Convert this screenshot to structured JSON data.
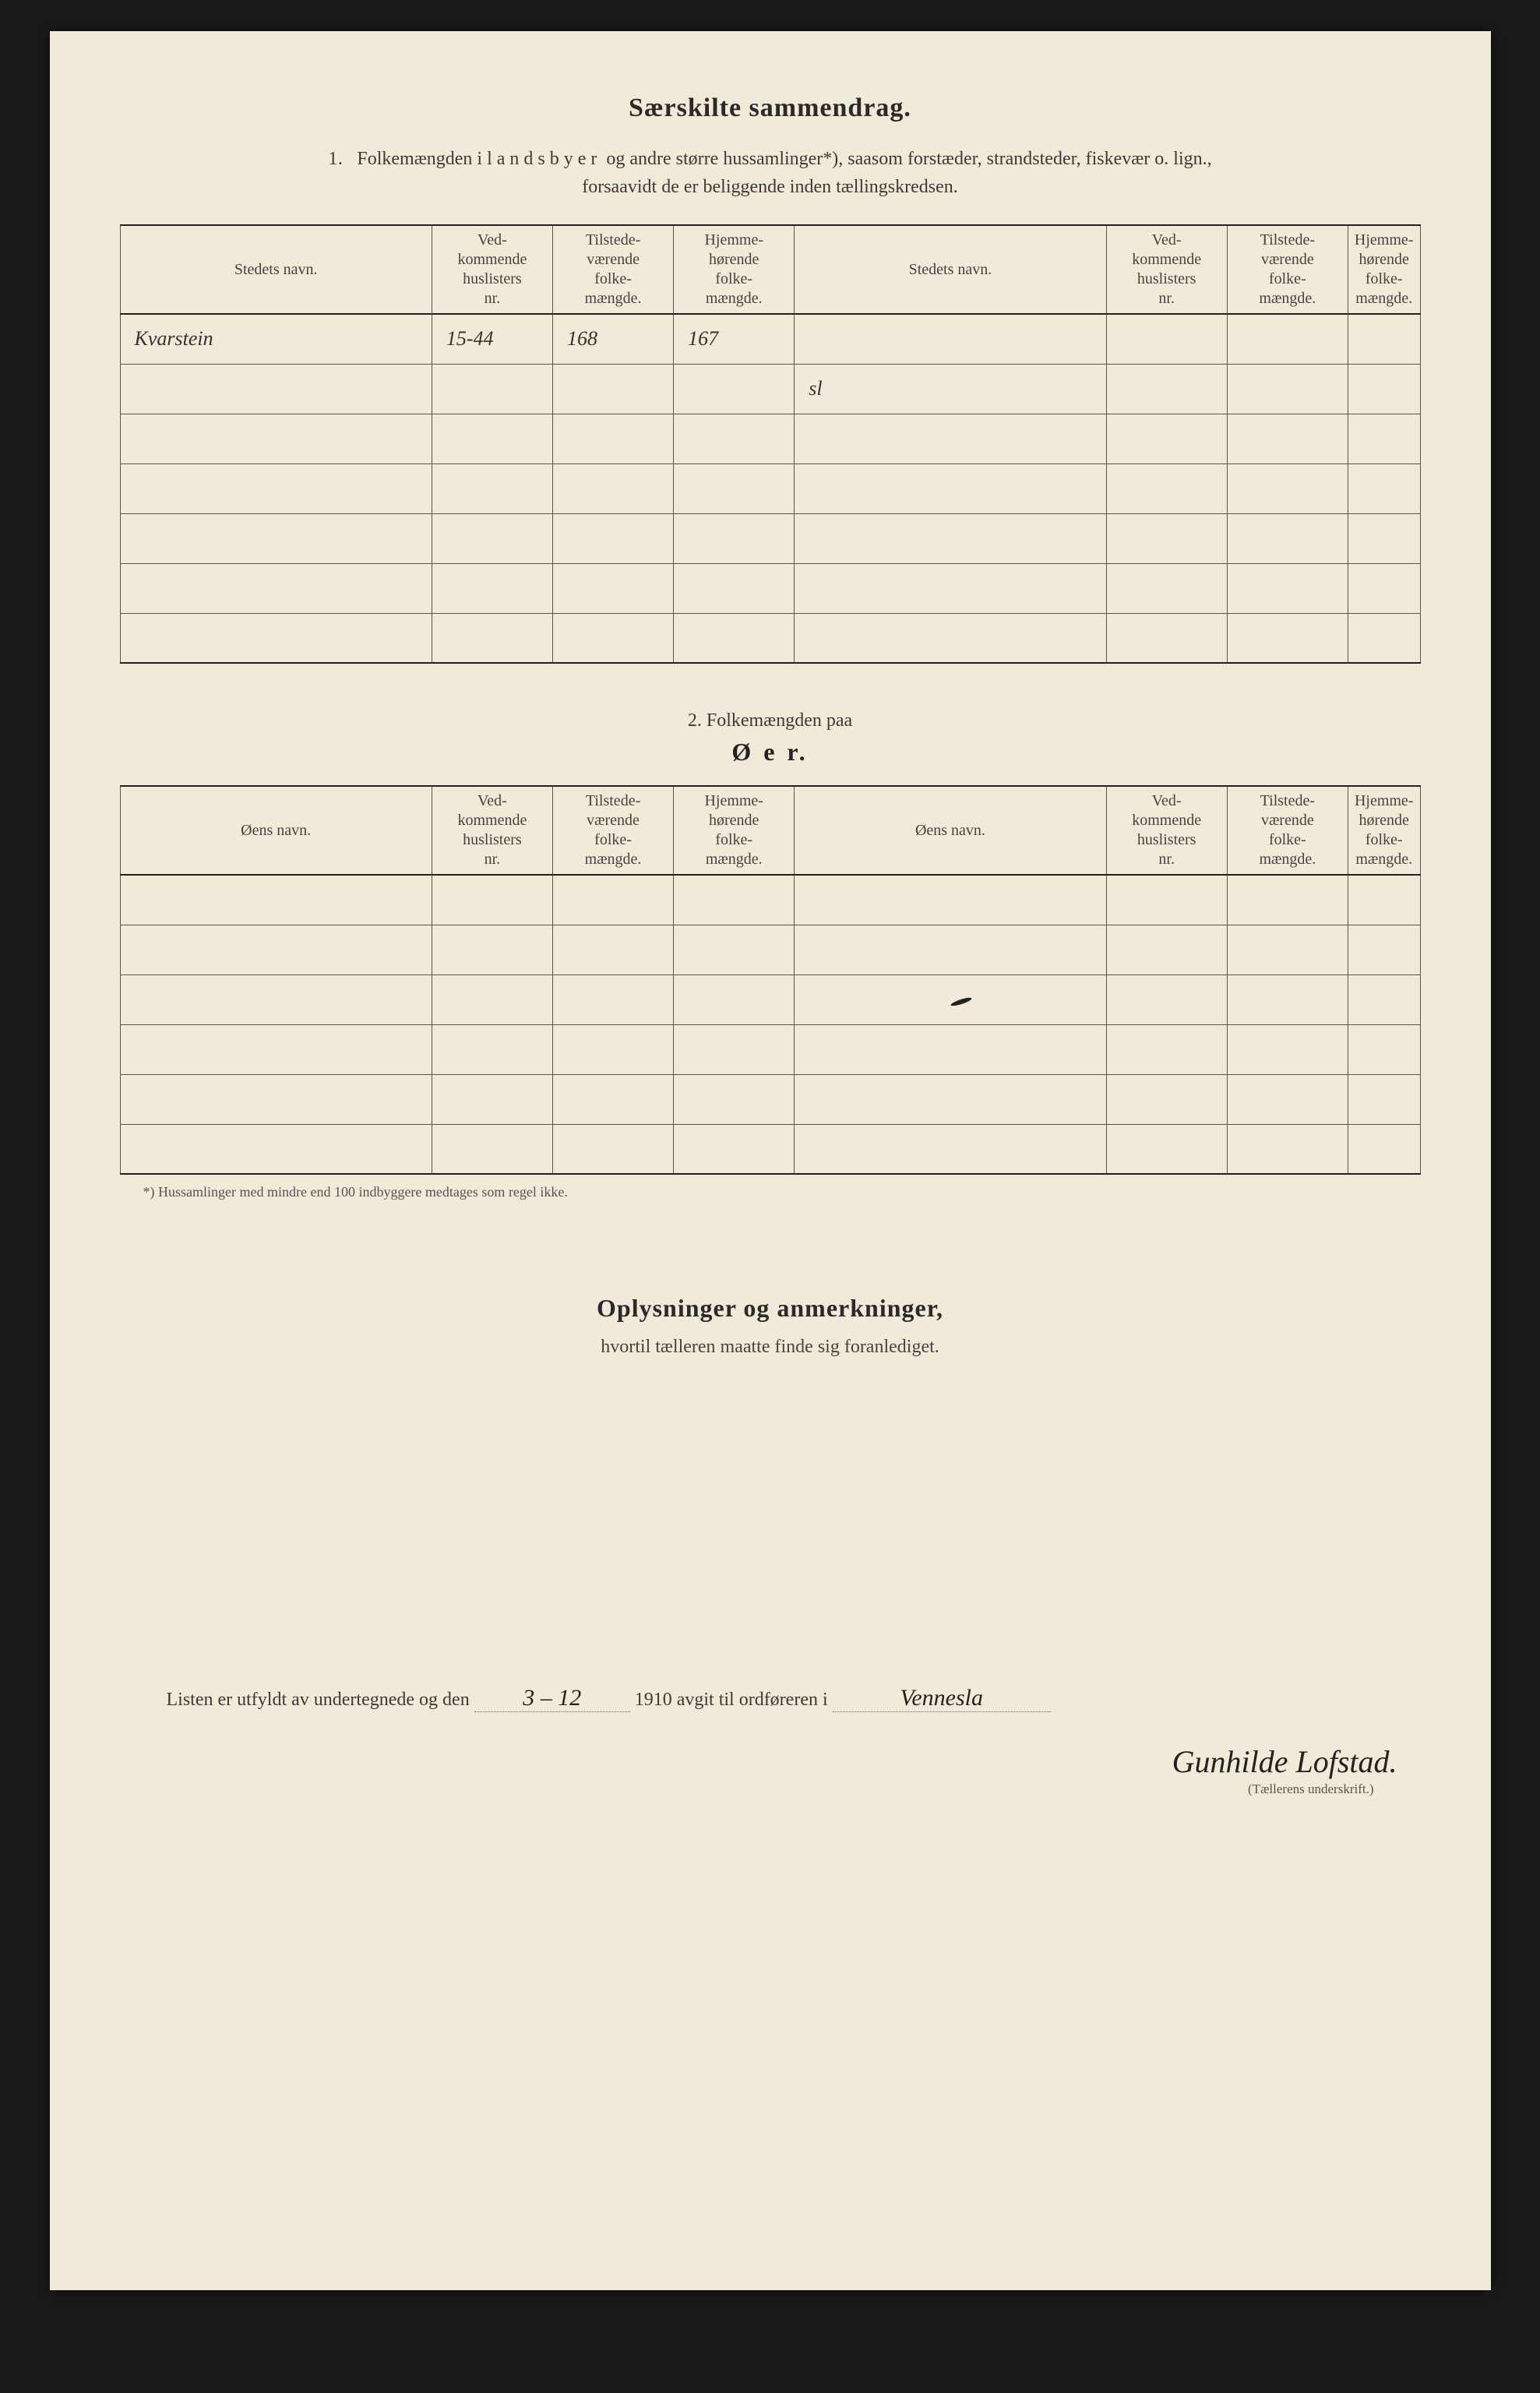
{
  "title": "Særskilte sammendrag.",
  "section1": {
    "number": "1.",
    "text_a": "Folkemængden i ",
    "text_spaced": "landsbyer",
    "text_b": " og andre større hussamlinger*), saasom forstæder, strandsteder, fiskevær o. lign.,",
    "text_c": "forsaavidt de er beliggende inden tællingskredsen."
  },
  "table1": {
    "headers": {
      "name": "Stedets navn.",
      "h1": "Ved-\nkommende\nhuslisters\nnr.",
      "h2": "Tilstede-\nværende\nfolke-\nmængde.",
      "h3": "Hjemme-\nhørende\nfolke-\nmængde."
    },
    "rows_left": [
      {
        "name": "Kvarstein",
        "c1": "15-44",
        "c2": "168",
        "c3": "167"
      },
      {
        "name": "",
        "c1": "",
        "c2": "",
        "c3": ""
      },
      {
        "name": "",
        "c1": "",
        "c2": "",
        "c3": ""
      },
      {
        "name": "",
        "c1": "",
        "c2": "",
        "c3": ""
      },
      {
        "name": "",
        "c1": "",
        "c2": "",
        "c3": ""
      },
      {
        "name": "",
        "c1": "",
        "c2": "",
        "c3": ""
      },
      {
        "name": "",
        "c1": "",
        "c2": "",
        "c3": ""
      }
    ],
    "rows_right": [
      {
        "name": "",
        "c1": "",
        "c2": "",
        "c3": ""
      },
      {
        "name": "sl",
        "c1": "",
        "c2": "",
        "c3": ""
      },
      {
        "name": "",
        "c1": "",
        "c2": "",
        "c3": ""
      },
      {
        "name": "",
        "c1": "",
        "c2": "",
        "c3": ""
      },
      {
        "name": "",
        "c1": "",
        "c2": "",
        "c3": ""
      },
      {
        "name": "",
        "c1": "",
        "c2": "",
        "c3": ""
      },
      {
        "name": "",
        "c1": "",
        "c2": "",
        "c3": ""
      }
    ]
  },
  "section2": {
    "line1": "2.   Folkemængden paa",
    "line2": "Ø e r."
  },
  "table2": {
    "headers": {
      "name": "Øens navn.",
      "h1": "Ved-\nkommende\nhuslisters\nnr.",
      "h2": "Tilstede-\nværende\nfolke-\nmængde.",
      "h3": "Hjemme-\nhørende\nfolke-\nmængde."
    },
    "row_count": 6
  },
  "footnote": "*)   Hussamlinger med mindre end 100 indbyggere medtages som regel ikke.",
  "oplysninger": {
    "title": "Oplysninger og anmerkninger,",
    "sub": "hvortil tælleren maatte finde sig foranlediget."
  },
  "signoff": {
    "pre": "Listen er utfyldt av undertegnede og den",
    "date": "3 – 12",
    "mid": "1910 avgit til ordføreren i",
    "place": "Vennesla",
    "name": "Gunhilde Lofstad.",
    "caption": "(Tællerens underskrift.)"
  },
  "colors": {
    "page_bg": "#f2ead8",
    "body_bg": "#1a1a1a",
    "rule": "#222",
    "text": "#2a2a2a"
  }
}
